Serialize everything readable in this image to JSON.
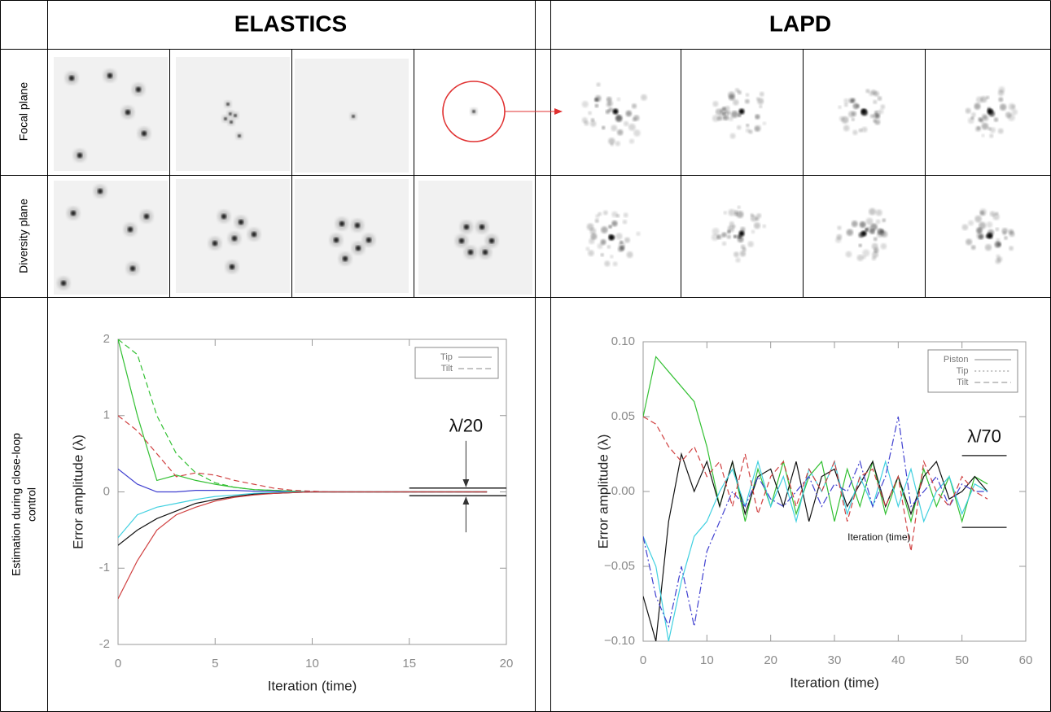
{
  "table": {
    "columns": [
      "ELASTICS",
      "LAPD"
    ],
    "row_labels": [
      "Focal plane",
      "Diversity plane"
    ],
    "estimation_label": [
      "Estimation during close-loop",
      "control"
    ]
  },
  "chart_data": [
    {
      "type": "line",
      "xlabel": "Iteration (time)",
      "ylabel": "Error amplitude (λ)",
      "xlim": [
        0,
        20
      ],
      "ylim": [
        -2,
        2
      ],
      "xticks": [
        0,
        5,
        10,
        15,
        20
      ],
      "yticks": [
        -2,
        -1,
        0,
        1,
        2
      ],
      "x": [
        0,
        1,
        2,
        3,
        4,
        5,
        6,
        7,
        8,
        9,
        10,
        11,
        12,
        13,
        14,
        15,
        16,
        17,
        18,
        19
      ],
      "legend_position": "upper right",
      "legend": [
        {
          "label": "Tip",
          "dash": "solid"
        },
        {
          "label": "Tilt",
          "dash": "dashed"
        }
      ],
      "series": [
        {
          "color": "#33c033",
          "dash": "solid",
          "values": [
            2.0,
            1.0,
            0.15,
            0.22,
            0.15,
            0.1,
            0.06,
            0.03,
            0.02,
            0.01,
            0,
            0,
            0,
            0,
            0,
            0,
            0,
            0,
            0,
            0
          ]
        },
        {
          "color": "#33c033",
          "dash": "dashed",
          "values": [
            2.0,
            1.8,
            1.0,
            0.5,
            0.25,
            0.12,
            0.06,
            0.03,
            0.02,
            0.01,
            0,
            0,
            0,
            0,
            0,
            0,
            0,
            0,
            0,
            0
          ]
        },
        {
          "color": "#d04040",
          "dash": "dashed",
          "values": [
            1.0,
            0.8,
            0.5,
            0.2,
            0.25,
            0.22,
            0.15,
            0.1,
            0.05,
            0.02,
            0.01,
            0,
            0,
            0,
            0,
            0,
            0,
            0,
            0,
            0
          ]
        },
        {
          "color": "#4040d0",
          "dash": "solid",
          "values": [
            0.3,
            0.1,
            0.0,
            0.0,
            0.02,
            0.02,
            0.02,
            0.01,
            0.01,
            0,
            0,
            0,
            0,
            0,
            0,
            0,
            0,
            0,
            0,
            0
          ]
        },
        {
          "color": "#40d0e0",
          "dash": "solid",
          "values": [
            -0.6,
            -0.3,
            -0.2,
            -0.15,
            -0.1,
            -0.06,
            -0.04,
            -0.02,
            -0.01,
            0,
            0,
            0,
            0,
            0,
            0,
            0,
            0,
            0,
            0,
            0
          ]
        },
        {
          "color": "#111111",
          "dash": "solid",
          "values": [
            -0.7,
            -0.5,
            -0.35,
            -0.25,
            -0.15,
            -0.1,
            -0.06,
            -0.03,
            -0.02,
            -0.01,
            0,
            0,
            0,
            0,
            0,
            0,
            0,
            0,
            0,
            0
          ]
        },
        {
          "color": "#d04040",
          "dash": "solid",
          "values": [
            -1.4,
            -0.9,
            -0.5,
            -0.3,
            -0.2,
            -0.12,
            -0.07,
            -0.04,
            -0.02,
            -0.01,
            0,
            0,
            0,
            0,
            0,
            0,
            0,
            0,
            0,
            0
          ]
        }
      ],
      "annotation": {
        "text": "λ/20",
        "range": [
          -0.05,
          0.05
        ],
        "xrange": [
          15,
          20
        ]
      }
    },
    {
      "type": "line",
      "xlabel": "Iteration (time)",
      "ylabel": "Error amplitude (λ)",
      "inner_label": "Iteration (time)",
      "xlim": [
        0,
        60
      ],
      "ylim": [
        -0.1,
        0.1
      ],
      "xticks": [
        0,
        10,
        20,
        30,
        40,
        50,
        60
      ],
      "yticks": [
        {
          "value": -0.1,
          "label": "−0.10"
        },
        {
          "value": -0.05,
          "label": "−0.05"
        },
        {
          "value": 0,
          "label": "0.00"
        },
        {
          "value": 0.05,
          "label": "0.05"
        },
        {
          "value": 0.1,
          "label": "0.10"
        }
      ],
      "x": [
        0,
        2,
        4,
        6,
        8,
        10,
        12,
        14,
        16,
        18,
        20,
        22,
        24,
        26,
        28,
        30,
        32,
        34,
        36,
        38,
        40,
        42,
        44,
        46,
        48,
        50,
        52,
        54
      ],
      "legend_position": "upper right",
      "legend": [
        {
          "label": "Piston",
          "dash": "solid"
        },
        {
          "label": "Tip",
          "dash": "dotted"
        },
        {
          "label": "Tilt",
          "dash": "dashed"
        }
      ],
      "series": [
        {
          "color": "#33c033",
          "dash": "solid",
          "values": [
            0.05,
            0.09,
            0.08,
            0.07,
            0.06,
            0.03,
            -0.01,
            0.02,
            -0.02,
            0.015,
            -0.01,
            0.02,
            -0.015,
            0.01,
            0.02,
            -0.02,
            0.015,
            -0.01,
            0.02,
            -0.015,
            0.01,
            -0.02,
            0.015,
            -0.01,
            0.01,
            -0.02,
            0.01,
            0.005
          ]
        },
        {
          "color": "#111111",
          "dash": "solid",
          "values": [
            -0.07,
            -0.1,
            -0.02,
            0.025,
            0.0,
            0.02,
            -0.01,
            0.02,
            -0.015,
            0.01,
            0.015,
            -0.01,
            0.02,
            -0.02,
            0.01,
            0.015,
            -0.01,
            0.005,
            0.02,
            -0.01,
            0.01,
            -0.015,
            0.01,
            0.02,
            -0.005,
            0.0,
            0.01,
            0.0
          ]
        },
        {
          "color": "#40d0e0",
          "dash": "solid",
          "values": [
            -0.03,
            -0.05,
            -0.1,
            -0.06,
            -0.03,
            -0.02,
            0.0,
            0.015,
            -0.01,
            0.02,
            -0.01,
            0.01,
            -0.02,
            0.015,
            0.0,
            0.02,
            -0.015,
            0.01,
            -0.01,
            0.02,
            -0.01,
            0.015,
            -0.02,
            0.0,
            0.01,
            -0.015,
            0.005,
            0.0
          ]
        },
        {
          "color": "#4040d0",
          "dash": "dashdot",
          "values": [
            -0.03,
            -0.07,
            -0.09,
            -0.05,
            -0.09,
            -0.04,
            -0.02,
            0.0,
            -0.01,
            0.01,
            -0.005,
            -0.01,
            0.0,
            0.01,
            -0.01,
            0.005,
            0.0,
            0.02,
            -0.01,
            0.01,
            0.05,
            -0.01,
            0.0,
            0.01,
            -0.01,
            0.005,
            0.0,
            0.0
          ]
        },
        {
          "color": "#d04040",
          "dash": "dashed",
          "values": [
            0.05,
            0.045,
            0.03,
            0.02,
            0.03,
            0.01,
            0.02,
            -0.01,
            0.025,
            -0.015,
            0.01,
            0.02,
            -0.01,
            0.015,
            0.0,
            0.02,
            -0.02,
            0.01,
            0.015,
            -0.01,
            0.01,
            -0.04,
            0.02,
            0.0,
            -0.01,
            0.01,
            0.0,
            -0.005
          ]
        }
      ],
      "annotation": {
        "text": "λ/70",
        "range": [
          -0.024,
          0.024
        ],
        "xrange": [
          50,
          57
        ]
      }
    }
  ]
}
